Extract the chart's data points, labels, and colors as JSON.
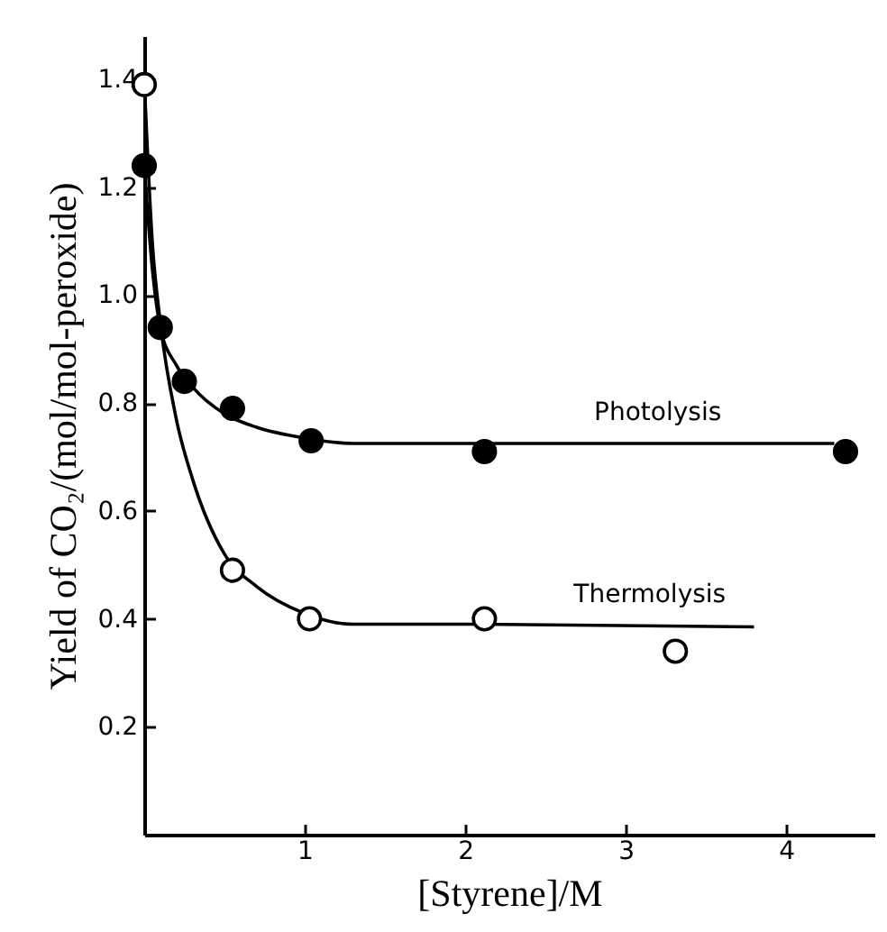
{
  "chart_data": {
    "type": "scatter",
    "xlabel": "[Styrene]/M",
    "ylabel": "Yield of CO₂/(mol/mol-peroxide)",
    "xlim": [
      0,
      4.55
    ],
    "xticks": [
      1,
      2,
      3,
      4
    ],
    "ylim": [
      0,
      1.48
    ],
    "yticks": [
      0.2,
      0.4,
      0.6,
      0.8,
      {
        "value": 1,
        "label": "1.0"
      },
      1.2,
      1.4
    ],
    "grid": false,
    "marker": "circle",
    "series": [
      {
        "type": "line",
        "marker": "none",
        "color": "#000000",
        "x": [
          0,
          0.05,
          0.1,
          0.2,
          0.3,
          0.5,
          0.7,
          1.0,
          1.3,
          4.3
        ],
        "values": [
          1.24,
          1.05,
          0.94,
          0.87,
          0.83,
          0.78,
          0.755,
          0.735,
          0.725,
          0.725
        ]
      },
      {
        "type": "line",
        "marker": "none",
        "color": "#000000",
        "x": [
          0,
          0.05,
          0.1,
          0.2,
          0.3,
          0.5,
          0.7,
          1.0,
          1.3,
          2.0,
          3.8
        ],
        "values": [
          1.4,
          1.1,
          0.95,
          0.77,
          0.66,
          0.52,
          0.46,
          0.41,
          0.39,
          0.39,
          0.385
        ]
      },
      {
        "color": "#000000",
        "x": [
          0,
          0.1,
          0.25,
          0.55,
          1.04,
          2.12,
          4.37
        ],
        "values": [
          1.24,
          0.94,
          0.84,
          0.79,
          0.73,
          0.71,
          0.71
        ]
      },
      {
        "color": "#ffffff",
        "x": [
          0,
          0.55,
          1.03,
          2.12,
          3.31
        ],
        "values": [
          1.39,
          0.49,
          0.4,
          0.4,
          0.34
        ]
      }
    ],
    "annotations": [
      {
        "text": "Photolysis",
        "x": 3.2,
        "y": 0.725
      },
      {
        "text": "Thermolysis",
        "x": 3.15,
        "y": 0.387
      }
    ]
  }
}
